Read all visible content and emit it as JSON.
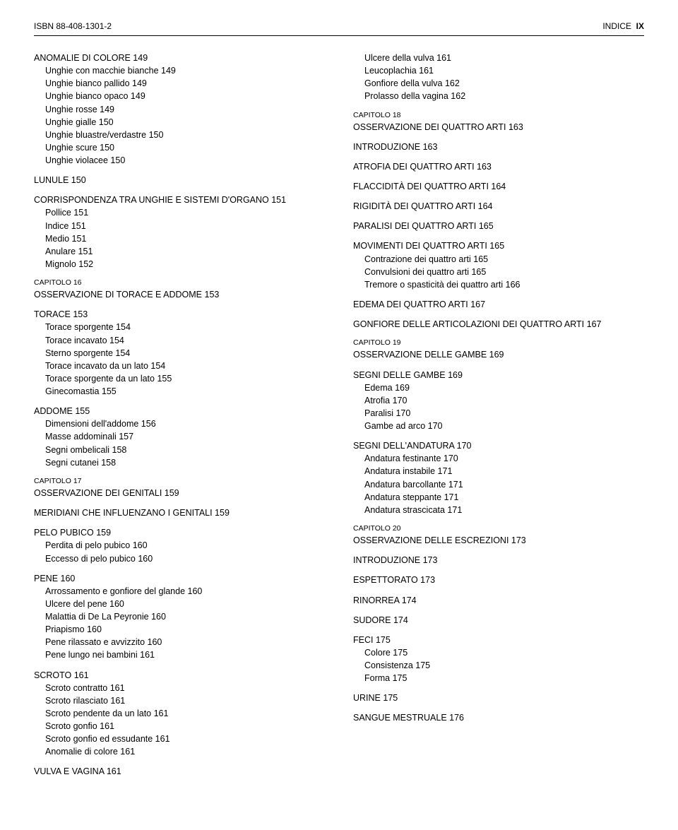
{
  "header": {
    "isbn_label": "ISBN 88-408-1301-2",
    "right_word": "INDICE",
    "right_page": "IX"
  },
  "left": [
    {
      "text": "ANOMALIE DI COLORE   149",
      "cls": "section-head first"
    },
    {
      "text": "Unghie con macchie bianche   149",
      "cls": "subitem"
    },
    {
      "text": "Unghie bianco pallido   149",
      "cls": "subitem"
    },
    {
      "text": "Unghie bianco opaco   149",
      "cls": "subitem"
    },
    {
      "text": "Unghie rosse   149",
      "cls": "subitem"
    },
    {
      "text": "Unghie gialle   150",
      "cls": "subitem"
    },
    {
      "text": "Unghie bluastre/verdastre   150",
      "cls": "subitem"
    },
    {
      "text": "Unghie scure   150",
      "cls": "subitem"
    },
    {
      "text": "Unghie violacee   150",
      "cls": "subitem"
    },
    {
      "text": "LUNULE   150",
      "cls": "section-head gap"
    },
    {
      "text": "CORRISPONDENZA TRA UNGHIE E SISTEMI D'ORGANO   151",
      "cls": "section-head gap"
    },
    {
      "text": "Pollice   151",
      "cls": "subitem"
    },
    {
      "text": "Indice   151",
      "cls": "subitem"
    },
    {
      "text": "Medio   151",
      "cls": "subitem"
    },
    {
      "text": "Anulare   151",
      "cls": "subitem"
    },
    {
      "text": "Mignolo   152",
      "cls": "subitem"
    },
    {
      "text": "CAPITOLO 16",
      "cls": "cap-label"
    },
    {
      "text": "OSSERVAZIONE DI TORACE E ADDOME   153",
      "cls": "cap-title"
    },
    {
      "text": "TORACE   153",
      "cls": "section-head gap"
    },
    {
      "text": "Torace sporgente   154",
      "cls": "subitem"
    },
    {
      "text": "Torace incavato   154",
      "cls": "subitem"
    },
    {
      "text": "Sterno sporgente   154",
      "cls": "subitem"
    },
    {
      "text": "Torace incavato da un lato   154",
      "cls": "subitem"
    },
    {
      "text": "Torace sporgente da un lato   155",
      "cls": "subitem"
    },
    {
      "text": "Ginecomastia   155",
      "cls": "subitem"
    },
    {
      "text": "ADDOME   155",
      "cls": "section-head gap"
    },
    {
      "text": "Dimensioni dell'addome   156",
      "cls": "subitem"
    },
    {
      "text": "Masse addominali   157",
      "cls": "subitem"
    },
    {
      "text": "Segni ombelicali   158",
      "cls": "subitem"
    },
    {
      "text": "Segni cutanei   158",
      "cls": "subitem"
    },
    {
      "text": "CAPITOLO 17",
      "cls": "cap-label"
    },
    {
      "text": "OSSERVAZIONE DEI GENITALI   159",
      "cls": "cap-title"
    },
    {
      "text": "MERIDIANI CHE INFLUENZANO I GENITALI   159",
      "cls": "section-head gap"
    },
    {
      "text": "PELO PUBICO   159",
      "cls": "section-head gap"
    },
    {
      "text": "Perdita di pelo pubico   160",
      "cls": "subitem"
    },
    {
      "text": "Eccesso di pelo pubico   160",
      "cls": "subitem"
    },
    {
      "text": "PENE   160",
      "cls": "section-head gap"
    },
    {
      "text": "Arrossamento e gonfiore del glande   160",
      "cls": "subitem"
    },
    {
      "text": "Ulcere del pene   160",
      "cls": "subitem"
    },
    {
      "text": "Malattia di De La Peyronie   160",
      "cls": "subitem"
    },
    {
      "text": "Priapismo   160",
      "cls": "subitem"
    },
    {
      "text": "Pene rilassato e avvizzito   160",
      "cls": "subitem"
    },
    {
      "text": "Pene lungo nei bambini   161",
      "cls": "subitem"
    },
    {
      "text": "SCROTO   161",
      "cls": "section-head gap"
    },
    {
      "text": "Scroto contratto   161",
      "cls": "subitem"
    },
    {
      "text": "Scroto rilasciato   161",
      "cls": "subitem"
    },
    {
      "text": "Scroto pendente da un lato   161",
      "cls": "subitem"
    },
    {
      "text": "Scroto gonfio   161",
      "cls": "subitem"
    },
    {
      "text": "Scroto gonfio ed essudante   161",
      "cls": "subitem"
    },
    {
      "text": "Anomalie di colore   161",
      "cls": "subitem"
    },
    {
      "text": "VULVA E VAGINA   161",
      "cls": "section-head gap"
    }
  ],
  "right": [
    {
      "text": "Ulcere della vulva   161",
      "cls": "subitem first"
    },
    {
      "text": "Leucoplachia   161",
      "cls": "subitem"
    },
    {
      "text": "Gonfiore della vulva   162",
      "cls": "subitem"
    },
    {
      "text": "Prolasso della vagina   162",
      "cls": "subitem"
    },
    {
      "text": "CAPITOLO 18",
      "cls": "cap-label"
    },
    {
      "text": "OSSERVAZIONE DEI QUATTRO ARTI   163",
      "cls": "cap-title"
    },
    {
      "text": "INTRODUZIONE   163",
      "cls": "section-head gap"
    },
    {
      "text": "ATROFIA DEI QUATTRO ARTI   163",
      "cls": "section-head gap"
    },
    {
      "text": "FLACCIDITÀ DEI QUATTRO ARTI   164",
      "cls": "section-head gap"
    },
    {
      "text": "RIGIDITÀ DEI QUATTRO ARTI   164",
      "cls": "section-head gap"
    },
    {
      "text": "PARALISI DEI QUATTRO ARTI   165",
      "cls": "section-head gap"
    },
    {
      "text": "MOVIMENTI DEI QUATTRO ARTI   165",
      "cls": "section-head gap"
    },
    {
      "text": "Contrazione dei quattro arti   165",
      "cls": "subitem"
    },
    {
      "text": "Convulsioni dei quattro arti   165",
      "cls": "subitem"
    },
    {
      "text": "Tremore o spasticità dei quattro arti   166",
      "cls": "subitem"
    },
    {
      "text": "EDEMA DEI QUATTRO ARTI   167",
      "cls": "section-head gap"
    },
    {
      "text": "GONFIORE DELLE ARTICOLAZIONI DEI QUATTRO ARTI   167",
      "cls": "section-head gap"
    },
    {
      "text": "CAPITOLO 19",
      "cls": "cap-label"
    },
    {
      "text": "OSSERVAZIONE DELLE GAMBE   169",
      "cls": "cap-title"
    },
    {
      "text": "SEGNI DELLE GAMBE   169",
      "cls": "section-head gap"
    },
    {
      "text": "Edema   169",
      "cls": "subitem"
    },
    {
      "text": "Atrofia   170",
      "cls": "subitem"
    },
    {
      "text": "Paralisi   170",
      "cls": "subitem"
    },
    {
      "text": "Gambe ad arco   170",
      "cls": "subitem"
    },
    {
      "text": "SEGNI DELL'ANDATURA   170",
      "cls": "section-head gap"
    },
    {
      "text": "Andatura festinante   170",
      "cls": "subitem"
    },
    {
      "text": "Andatura instabile   171",
      "cls": "subitem"
    },
    {
      "text": "Andatura barcollante   171",
      "cls": "subitem"
    },
    {
      "text": "Andatura steppante   171",
      "cls": "subitem"
    },
    {
      "text": "Andatura strascicata   171",
      "cls": "subitem"
    },
    {
      "text": "CAPITOLO 20",
      "cls": "cap-label"
    },
    {
      "text": "OSSERVAZIONE DELLE ESCREZIONI   173",
      "cls": "cap-title"
    },
    {
      "text": "INTRODUZIONE   173",
      "cls": "section-head gap"
    },
    {
      "text": "ESPETTORATO   173",
      "cls": "section-head gap"
    },
    {
      "text": "RINORREA   174",
      "cls": "section-head gap"
    },
    {
      "text": "SUDORE   174",
      "cls": "section-head gap"
    },
    {
      "text": "FECI   175",
      "cls": "section-head gap"
    },
    {
      "text": "Colore   175",
      "cls": "subitem"
    },
    {
      "text": "Consistenza   175",
      "cls": "subitem"
    },
    {
      "text": "Forma   175",
      "cls": "subitem"
    },
    {
      "text": "URINE   175",
      "cls": "section-head gap"
    },
    {
      "text": "SANGUE MESTRUALE   176",
      "cls": "section-head gap"
    }
  ]
}
